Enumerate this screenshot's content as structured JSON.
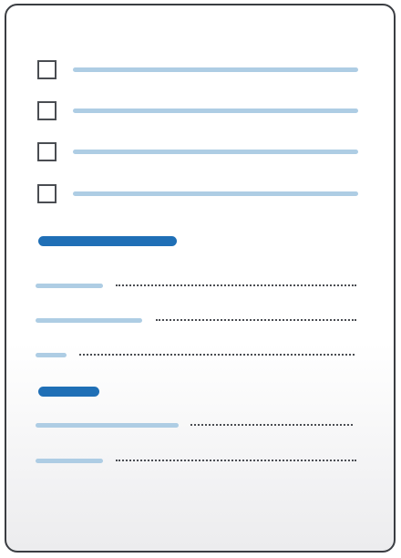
{
  "document": {
    "description_free": true,
    "checklist": {
      "items": [
        {
          "checked": false,
          "icon": "checkbox-empty-icon"
        },
        {
          "checked": false,
          "icon": "checkbox-empty-icon"
        },
        {
          "checked": false,
          "icon": "checkbox-empty-icon"
        },
        {
          "checked": false,
          "icon": "checkbox-empty-icon"
        }
      ]
    },
    "sections": [
      {
        "heading_placeholder": true,
        "rows": 3
      },
      {
        "heading_placeholder": true,
        "rows": 2
      }
    ],
    "colors": {
      "accent": "#1f6fb6",
      "placeholder_line": "#aecde4",
      "border": "#3a3d42",
      "leader_dots": "#4a4d52"
    }
  }
}
